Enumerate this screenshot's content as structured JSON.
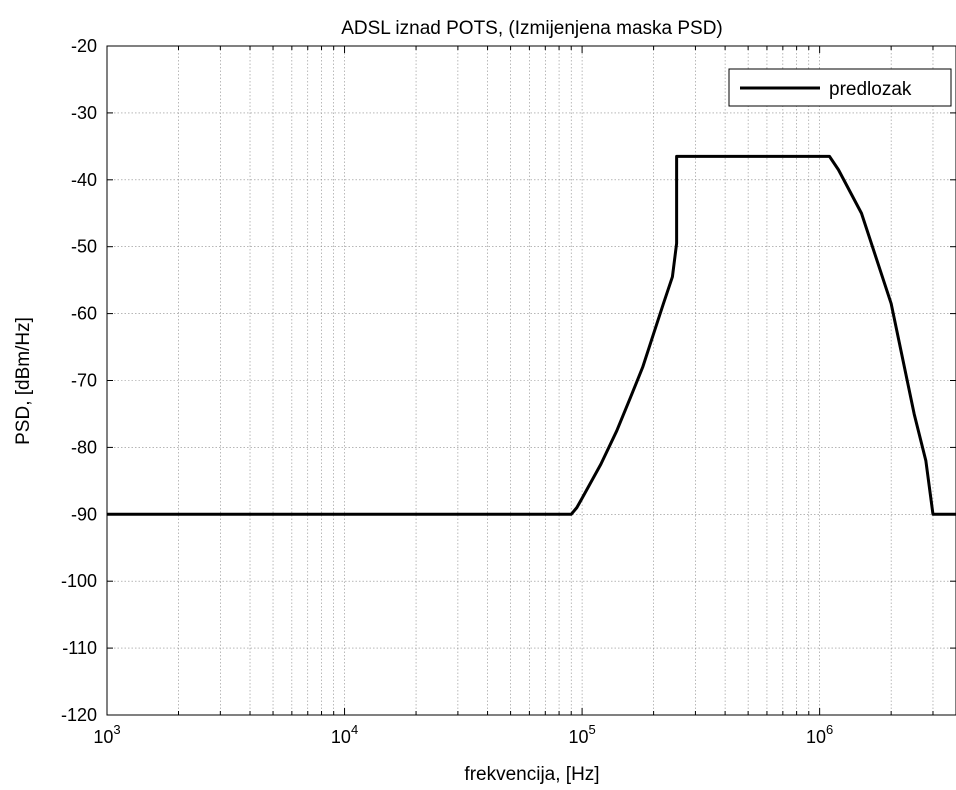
{
  "chart_data": {
    "type": "line",
    "title": "ADSL iznad POTS, (Izmijenjena maska PSD)",
    "xlabel": "frekvencija, [Hz]",
    "ylabel": "PSD, [dBm/Hz]",
    "xscale": "log",
    "xlim": [
      1000,
      3750000
    ],
    "ylim": [
      -120,
      -20
    ],
    "xticks": [
      {
        "value": 1000,
        "base": "10",
        "exp": "3"
      },
      {
        "value": 10000,
        "base": "10",
        "exp": "4"
      },
      {
        "value": 100000,
        "base": "10",
        "exp": "5"
      },
      {
        "value": 1000000,
        "base": "10",
        "exp": "6"
      }
    ],
    "yticks": [
      "-20",
      "-30",
      "-40",
      "-50",
      "-60",
      "-70",
      "-80",
      "-90",
      "-100",
      "-110",
      "-120"
    ],
    "grid": true,
    "legend": "top-right",
    "series": [
      {
        "name": "predlozak",
        "color": "#000000",
        "x": [
          1000,
          90000,
          95000,
          100000,
          120000,
          140000,
          160000,
          180000,
          200000,
          220000,
          240000,
          250000,
          250000,
          1100000,
          1200000,
          1500000,
          2000000,
          2500000,
          2800000,
          3000000,
          3750000
        ],
        "y": [
          -90,
          -90,
          -89,
          -87.6,
          -82.5,
          -77.5,
          -72.5,
          -68,
          -63,
          -58.5,
          -54.5,
          -49.5,
          -36.5,
          -36.5,
          -38.5,
          -45,
          -58.5,
          -75,
          -82,
          -90,
          -90
        ]
      }
    ]
  }
}
